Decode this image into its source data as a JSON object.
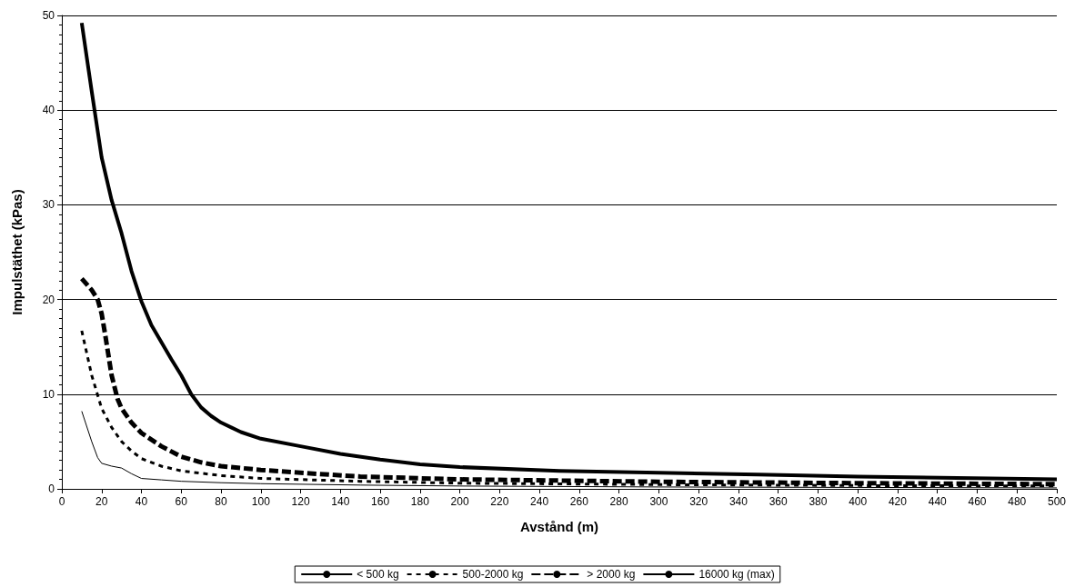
{
  "chart_data": {
    "type": "line",
    "xlabel": "Avstånd (m)",
    "ylabel": "Impulstäthet (kPas)",
    "xlim": [
      0,
      500
    ],
    "xticks": [
      0,
      20,
      40,
      60,
      80,
      100,
      120,
      140,
      160,
      180,
      200,
      220,
      240,
      260,
      280,
      300,
      320,
      340,
      360,
      380,
      400,
      420,
      440,
      460,
      480,
      500
    ],
    "ylim": [
      0,
      50
    ],
    "yticks": [
      0,
      10,
      20,
      30,
      40,
      50
    ],
    "grid": "y",
    "legend": "bottom",
    "marker": "none",
    "series": [
      {
        "name": "< 500 kg",
        "color": "#000000",
        "line_style": "solid",
        "x": [
          10,
          15,
          18,
          20,
          25,
          30,
          35,
          40,
          50,
          60,
          80,
          100,
          150,
          200,
          300,
          400,
          500
        ],
        "values": [
          8.2,
          5,
          3.3,
          2.7,
          2.4,
          2.2,
          1.6,
          1.1,
          0.95,
          0.8,
          0.65,
          0.55,
          0.4,
          0.3,
          0.2,
          0.15,
          0.1
        ]
      },
      {
        "name": "500-2000 kg",
        "color": "#000000",
        "line_style": "dotted",
        "x": [
          10,
          15,
          20,
          25,
          30,
          35,
          40,
          50,
          60,
          80,
          100,
          150,
          200,
          300,
          400,
          500
        ],
        "values": [
          16.7,
          12,
          8.5,
          6.5,
          5,
          4,
          3.2,
          2.4,
          1.9,
          1.4,
          1.1,
          0.8,
          0.6,
          0.45,
          0.35,
          0.3
        ]
      },
      {
        "name": "> 2000 kg",
        "color": "#000000",
        "line_style": "dashed",
        "x": [
          10,
          15,
          18,
          20,
          22,
          25,
          28,
          30,
          35,
          40,
          50,
          60,
          70,
          80,
          100,
          120,
          150,
          200,
          300,
          400,
          500
        ],
        "values": [
          22.2,
          21,
          20,
          18.5,
          16,
          12,
          9.5,
          8.5,
          7,
          5.9,
          4.5,
          3.4,
          2.8,
          2.4,
          2,
          1.7,
          1.3,
          1,
          0.75,
          0.6,
          0.5
        ]
      },
      {
        "name": "16000 kg (max)",
        "color": "#000000",
        "line_style": "solid",
        "x": [
          10,
          15,
          20,
          25,
          30,
          35,
          40,
          45,
          50,
          55,
          60,
          65,
          70,
          75,
          80,
          90,
          100,
          120,
          140,
          160,
          180,
          200,
          250,
          300,
          350,
          400,
          450,
          500
        ],
        "values": [
          49.2,
          42,
          35,
          30.5,
          27,
          23,
          19.8,
          17.3,
          15.5,
          13.7,
          12,
          10,
          8.6,
          7.7,
          7,
          6,
          5.3,
          4.5,
          3.7,
          3.1,
          2.6,
          2.3,
          1.9,
          1.7,
          1.5,
          1.3,
          1.15,
          1
        ]
      }
    ]
  }
}
